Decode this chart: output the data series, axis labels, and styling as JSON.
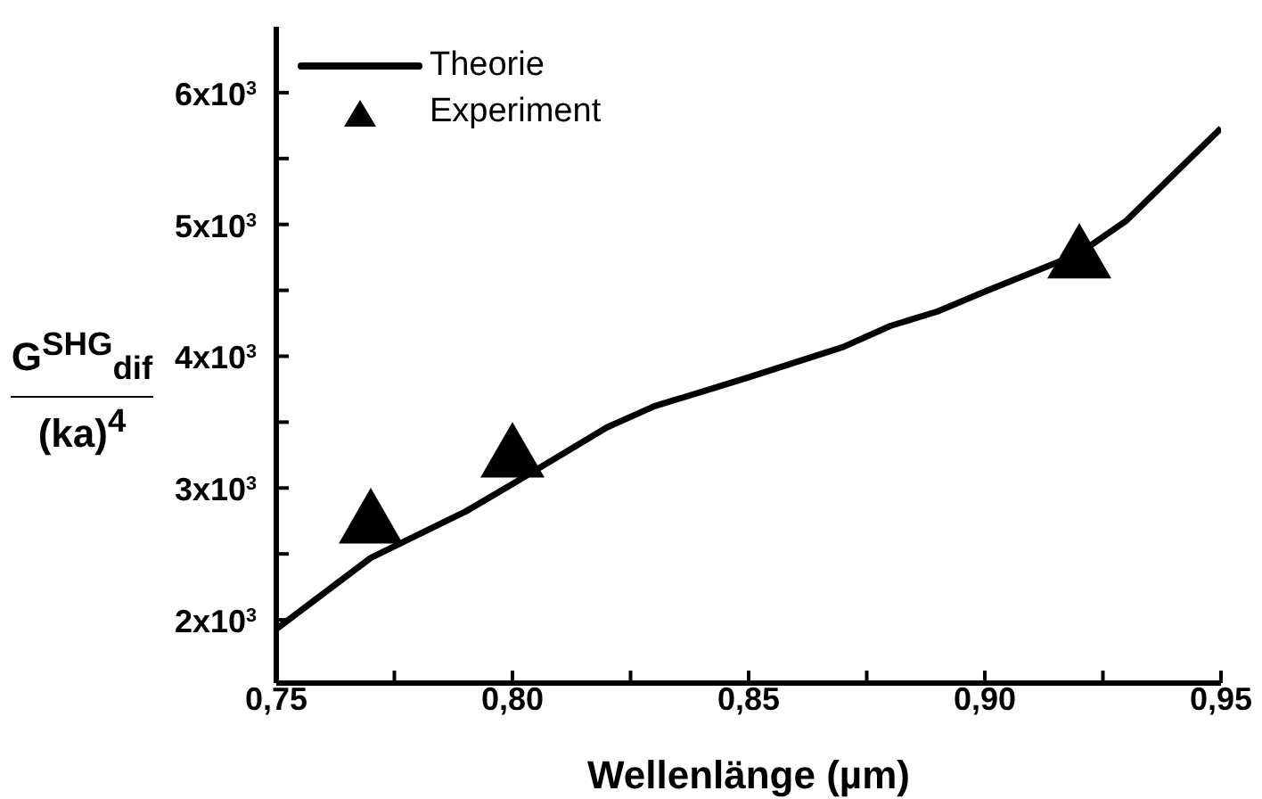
{
  "chart_data": {
    "type": "line",
    "xlabel": "Wellenlänge (µm)",
    "ylabel": "G$^{SHG}$$_{dif}$\n(ka)$^{4}$",
    "xlim": [
      0.75,
      0.95
    ],
    "xticks": [
      {
        "value": 0.75,
        "label": "0,75"
      },
      {
        "value": 0.775,
        "label": null
      },
      {
        "value": 0.8,
        "label": "0,80"
      },
      {
        "value": 0.825,
        "label": null
      },
      {
        "value": 0.85,
        "label": "0,85"
      },
      {
        "value": 0.875,
        "label": null
      },
      {
        "value": 0.9,
        "label": "0,90"
      },
      {
        "value": 0.925,
        "label": null
      },
      {
        "value": 0.95,
        "label": "0,95"
      }
    ],
    "ylim": [
      1520,
      6500
    ],
    "yticks": [
      {
        "value": 2000,
        "label": "2x10$^{3}$"
      },
      {
        "value": 2500,
        "label": null
      },
      {
        "value": 3000,
        "label": "3x10$^{3}$"
      },
      {
        "value": 3500,
        "label": null
      },
      {
        "value": 4000,
        "label": "4x10$^{3}$"
      },
      {
        "value": 4500,
        "label": null
      },
      {
        "value": 5000,
        "label": "5x10$^{3}$"
      },
      {
        "value": 5500,
        "label": null
      },
      {
        "value": 6000,
        "label": "6x10$^{3}$"
      }
    ],
    "legend": "top left",
    "grid": false,
    "series": [
      {
        "name": "Theorie",
        "color": "#000000",
        "marker": "none",
        "line_style": "solid",
        "x": [
          0.75,
          0.77,
          0.79,
          0.8,
          0.82,
          0.83,
          0.85,
          0.87,
          0.88,
          0.89,
          0.9,
          0.92,
          0.93,
          0.95
        ],
        "values": [
          1930,
          2470,
          2820,
          3030,
          3460,
          3620,
          3840,
          4070,
          4230,
          4340,
          4490,
          4780,
          5030,
          5730
        ]
      },
      {
        "name": "Experiment",
        "type": "scatter",
        "color": "#000000",
        "marker": "triangle",
        "x": [
          0.77,
          0.8,
          0.92
        ],
        "values": [
          2720,
          3220,
          4730
        ]
      }
    ]
  }
}
